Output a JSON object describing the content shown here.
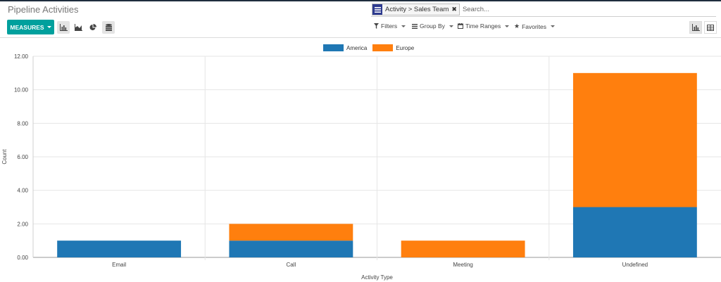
{
  "header": {
    "title": "Pipeline Activities"
  },
  "search": {
    "facet_label": "Activity > Sales Team",
    "facet_icon": "list-icon",
    "remove_icon": "close-icon",
    "placeholder": "Search..."
  },
  "toolbar": {
    "measures_label": "MEASURES",
    "view_icons": [
      "bar-chart-icon",
      "area-chart-icon",
      "pie-chart-icon",
      "database-stack-icon"
    ],
    "filters_label": "Filters",
    "group_by_label": "Group By",
    "time_ranges_label": "Time Ranges",
    "favorites_label": "Favorites",
    "mode_icons": [
      "bar-chart-icon",
      "table-icon"
    ]
  },
  "colors": {
    "accent": "#00a09d",
    "facet_icon_bg": "#2e3b8f",
    "series_america": "#1f77b4",
    "series_europe": "#ff7f0e"
  },
  "chart_data": {
    "type": "bar",
    "stacked": true,
    "categories": [
      "Email",
      "Call",
      "Meeting",
      "Undefined"
    ],
    "series": [
      {
        "name": "America",
        "values": [
          1,
          1,
          0,
          3
        ],
        "color": "#1f77b4"
      },
      {
        "name": "Europe",
        "values": [
          0,
          1,
          1,
          8
        ],
        "color": "#ff7f0e"
      }
    ],
    "xlabel": "Activity Type",
    "ylabel": "Count",
    "ylim": [
      0,
      12
    ],
    "yticks": [
      "0.00",
      "2.00",
      "4.00",
      "6.00",
      "8.00",
      "10.00",
      "12.00"
    ],
    "legend_position": "top-center",
    "grid": true
  }
}
